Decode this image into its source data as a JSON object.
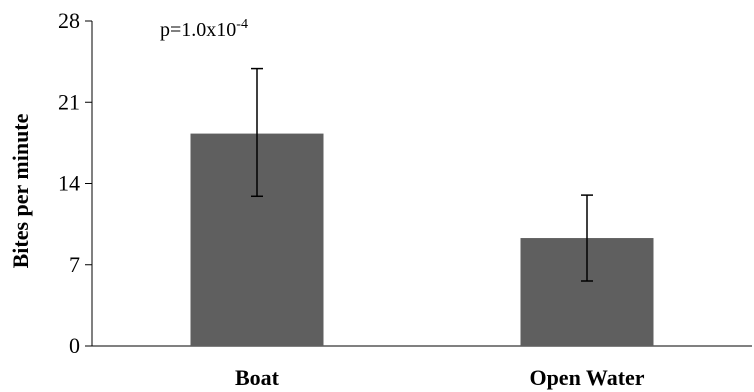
{
  "chart_data": {
    "type": "bar",
    "title": "",
    "xlabel": "",
    "ylabel": "Bites  per minute",
    "categories": [
      "Boat",
      "Open Water"
    ],
    "values": [
      18.3,
      9.3
    ],
    "error_bars": [
      {
        "low": 12.9,
        "high": 23.9
      },
      {
        "low": 5.6,
        "high": 13.0
      }
    ],
    "ylim": [
      0,
      28
    ],
    "yticks": [
      "0",
      "7",
      "14",
      "21",
      "28"
    ],
    "grid": false,
    "legend": "none",
    "bar_color": "#5f5f5f",
    "annotation": {
      "base": "p=1.0x10",
      "exponent": "-4"
    }
  }
}
